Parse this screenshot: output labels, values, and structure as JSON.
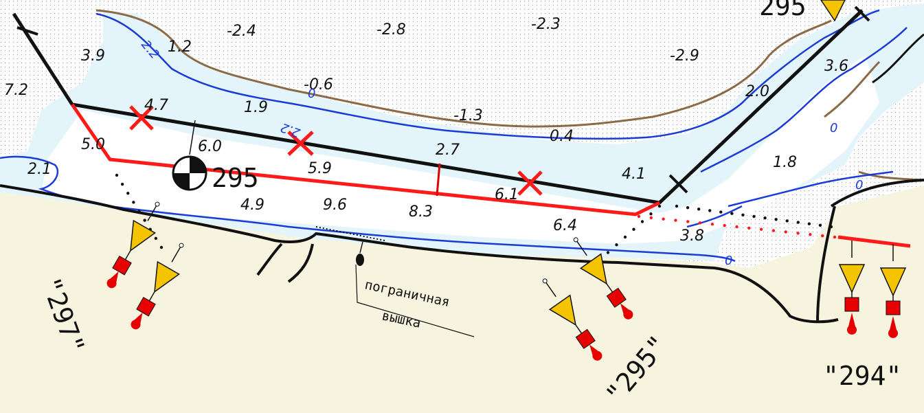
{
  "colors": {
    "land": "#f6f3de",
    "shoal": "#ffffff",
    "water": "#e3f4fb",
    "isobath": "#1a3bd6",
    "shoreline": "#8b6a45",
    "route": "#ff1a1a",
    "buoy_yellow": "#f5c400",
    "buoy_red": "#e60000"
  },
  "depths": [
    "-2.4",
    "-2.8",
    "-2.3",
    "-2.9",
    "1.2",
    "3.9",
    "7.2",
    "-0.6",
    "-1.3",
    "4.7",
    "1.9",
    "0.4",
    "3.6",
    "2.0",
    "5.0",
    "6.0",
    "2.7",
    "5.9",
    "4.1",
    "1.8",
    "2.1",
    "4.9",
    "9.6",
    "8.3",
    "6.1",
    "6.4",
    "3.8"
  ],
  "isobath_labels": [
    "2.2",
    "2.2",
    "0",
    "0",
    "0",
    "0"
  ],
  "top_partial": "295",
  "km_marker": "295",
  "landmark": {
    "line1": "пограничная",
    "line2": "вышка"
  },
  "signals": [
    {
      "name": "signal-297",
      "label": "\"297\""
    },
    {
      "name": "signal-295",
      "label": "\"295\""
    },
    {
      "name": "signal-294",
      "label": "\"294\""
    }
  ]
}
